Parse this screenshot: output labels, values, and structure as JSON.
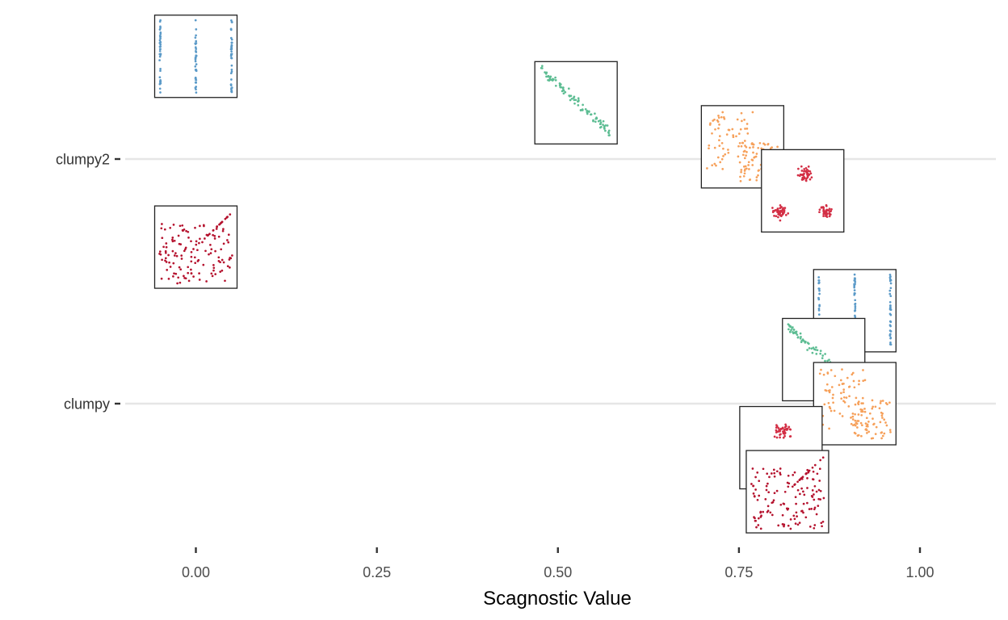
{
  "chart_data": {
    "type": "scatter",
    "xlabel": "Scagnostic Value",
    "ylabel": "",
    "xlim": [
      -0.13,
      1.11
    ],
    "x_ticks": [
      0.0,
      0.25,
      0.5,
      0.75,
      1.0
    ],
    "x_tick_labels": [
      "0.00",
      "0.25",
      "0.50",
      "0.75",
      "1.00"
    ],
    "categories": [
      "clumpy2",
      "clumpy"
    ],
    "grid": "horizontal major gridlines only",
    "legend": "none",
    "marks": "each point is a mini scatterplot thumbnail (inset plot) placed at its scagnostic value",
    "series": [
      {
        "color": "#5b9ac8",
        "pattern": "three_columns",
        "points": [
          {
            "category": "clumpy2",
            "x": 0.0,
            "y_offset": 0.42
          },
          {
            "category": "clumpy",
            "x": 0.91,
            "y_offset": 0.38
          }
        ]
      },
      {
        "color": "#5dbd93",
        "pattern": "linear",
        "points": [
          {
            "category": "clumpy2",
            "x": 0.525,
            "y_offset": 0.23
          },
          {
            "category": "clumpy",
            "x": 0.867,
            "y_offset": 0.18
          }
        ]
      },
      {
        "color": "#f6a05a",
        "pattern": "two_clusters",
        "points": [
          {
            "category": "clumpy2",
            "x": 0.755,
            "y_offset": 0.05
          },
          {
            "category": "clumpy",
            "x": 0.91,
            "y_offset": 0.0
          }
        ]
      },
      {
        "color": "#d32f45",
        "pattern": "three_blobs",
        "points": [
          {
            "category": "clumpy2",
            "x": 0.838,
            "y_offset": -0.13
          },
          {
            "category": "clumpy",
            "x": 0.808,
            "y_offset": -0.18
          }
        ]
      },
      {
        "color": "#b5122e",
        "pattern": "uniform_random",
        "points": [
          {
            "category": "clumpy2",
            "x": 0.0,
            "y_offset": -0.36
          },
          {
            "category": "clumpy",
            "x": 0.817,
            "y_offset": -0.36
          }
        ]
      }
    ]
  }
}
